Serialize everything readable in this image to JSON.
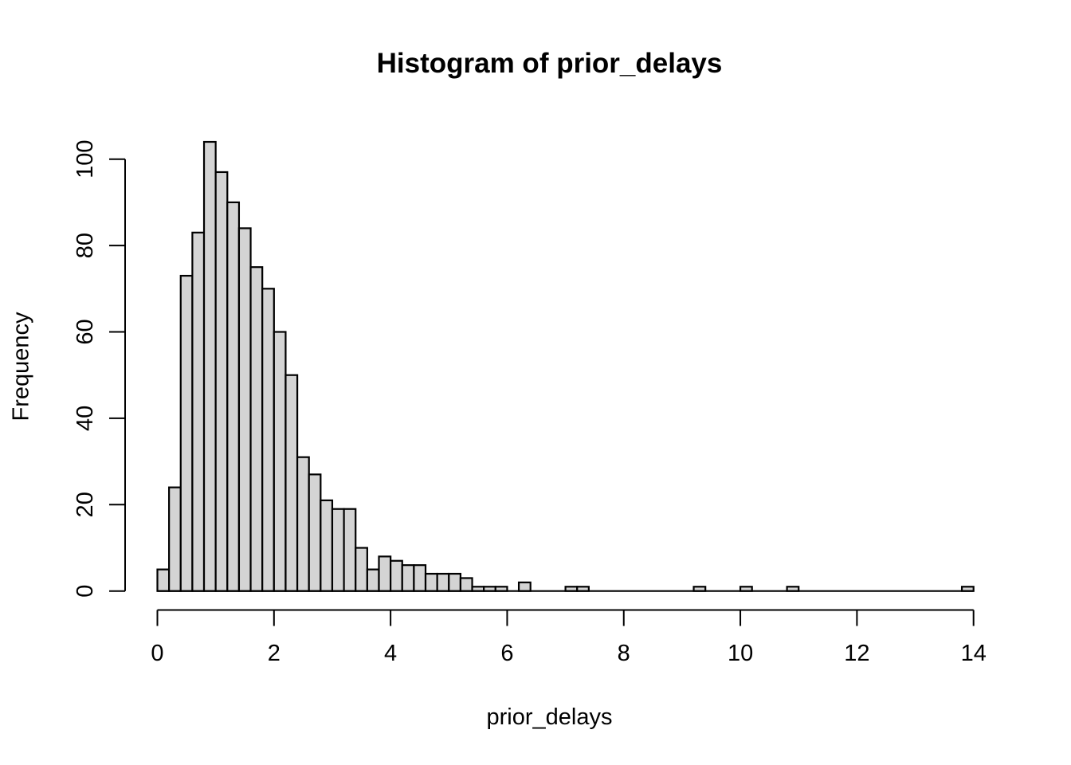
{
  "figure": {
    "kind": "r-base-histogram"
  },
  "chart_data": {
    "type": "bar",
    "title": "Histogram of prior_delays",
    "xlabel": "prior_delays",
    "ylabel": "Frequency",
    "grid": false,
    "legend": null,
    "bin_start": 0,
    "bin_width": 0.2,
    "xlim": [
      0,
      14
    ],
    "ylim": [
      0,
      104
    ],
    "x_ticks": [
      0,
      2,
      4,
      6,
      8,
      10,
      12,
      14
    ],
    "y_ticks": [
      0,
      20,
      40,
      60,
      80,
      100
    ],
    "counts": [
      5,
      24,
      73,
      83,
      104,
      97,
      90,
      84,
      75,
      70,
      60,
      50,
      31,
      27,
      21,
      19,
      19,
      10,
      5,
      8,
      7,
      6,
      6,
      4,
      4,
      4,
      3,
      1,
      1,
      1,
      0,
      2,
      0,
      0,
      0,
      1,
      1,
      0,
      0,
      0,
      0,
      0,
      0,
      0,
      0,
      0,
      1,
      0,
      0,
      0,
      1,
      0,
      0,
      0,
      1,
      0,
      0,
      0,
      0,
      0,
      0,
      0,
      0,
      0,
      0,
      0,
      0,
      0,
      0,
      1
    ],
    "colors": {
      "bar_fill": "#d4d4d4",
      "bar_stroke": "#000000",
      "axis": "#000000",
      "background": "#ffffff"
    }
  }
}
